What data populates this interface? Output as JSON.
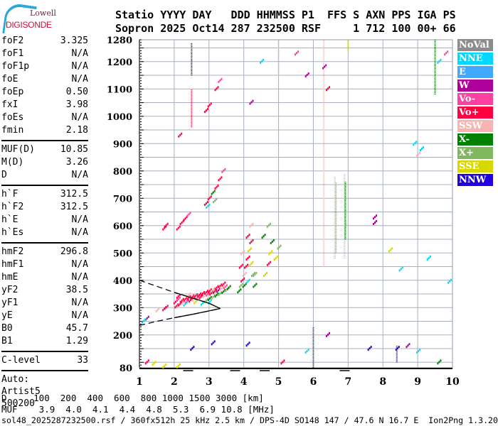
{
  "logo": {
    "line1": "Lowell",
    "line2": "DIGISONDE"
  },
  "header": {
    "line1": "Statio YYYY DAY   DDD HHMMSS P1  FFS S AXN PPS IGA PS",
    "line2": "Sopron 2025 Oct14 287 232500 RSF     1 712 100 00+ 66"
  },
  "params": {
    "group1": [
      [
        "foF2",
        "3.325"
      ],
      [
        "foF1",
        "N/A"
      ],
      [
        "foF1p",
        "N/A"
      ],
      [
        "foE",
        "N/A"
      ],
      [
        "foEp",
        "0.50"
      ],
      [
        "fxI",
        "3.98"
      ],
      [
        "foEs",
        "N/A"
      ],
      [
        "fmin",
        "2.18"
      ]
    ],
    "group2": [
      [
        "MUF(D)",
        "10.85"
      ],
      [
        "M(D)",
        "3.26"
      ],
      [
        "D",
        "N/A"
      ]
    ],
    "group3": [
      [
        "h`F",
        "312.5"
      ],
      [
        "h`F2",
        "312.5"
      ],
      [
        "h`E",
        "N/A"
      ],
      [
        "h`Es",
        "N/A"
      ]
    ],
    "group4": [
      [
        "hmF2",
        "296.8"
      ],
      [
        "hmF1",
        "N/A"
      ],
      [
        "hmE",
        "N/A"
      ],
      [
        "yF2",
        "38.5"
      ],
      [
        "yF1",
        "N/A"
      ],
      [
        "yE",
        "N/A"
      ],
      [
        "B0",
        "45.7"
      ],
      [
        "B1",
        "1.29"
      ]
    ],
    "group5": [
      [
        "C-level",
        "33"
      ]
    ],
    "auto": [
      "Auto:",
      "Artist5",
      "500200"
    ]
  },
  "legend": [
    {
      "label": "NoVal",
      "color": "#8c8c8c"
    },
    {
      "label": "NNE",
      "color": "#00d8ff"
    },
    {
      "label": "E",
      "color": "#40a8ff"
    },
    {
      "label": "W",
      "color": "#b0009c"
    },
    {
      "label": "Vo-",
      "color": "#ff40a0"
    },
    {
      "label": "Vo+",
      "color": "#ff0040"
    },
    {
      "label": "SSW",
      "color": "#f8b4b0"
    },
    {
      "label": "X-",
      "color": "#008000"
    },
    {
      "label": "X+",
      "color": "#80b860"
    },
    {
      "label": "SSE",
      "color": "#d8d800"
    },
    {
      "label": "NNW",
      "color": "#2000e0"
    }
  ],
  "footer": {
    "d_row": "D     100  200  400  600  800 1000 1500 3000 [km]",
    "muf_row": "MUF    3.9  4.0  4.1  4.4  4.8  5.3  6.9 10.8 [MHz]",
    "file_row": "sol48_2025287232500.rsf / 360fx512h 25 kHz 2.5 km / DPS-4D SO148 147 / 47.6 N 16.7 E  Ion2Png 1.3.20"
  },
  "chart_data": {
    "type": "scatter",
    "xlim": [
      1,
      10
    ],
    "ylim": [
      80,
      1280
    ],
    "x_ticks": [
      "1",
      "2",
      "3",
      "4",
      "5",
      "6",
      "7",
      "8",
      "9",
      "10"
    ],
    "y_ticks": [
      "80",
      "200",
      "300",
      "400",
      "500",
      "600",
      "700",
      "800",
      "900",
      "1000",
      "1100",
      "1200",
      "1280"
    ],
    "grid": true,
    "xlabel": "",
    "ylabel": "",
    "profile": {
      "upper": [
        [
          1.0,
          400
        ],
        [
          1.5,
          378
        ],
        [
          2.0,
          356
        ],
        [
          2.5,
          336
        ],
        [
          3.0,
          316
        ],
        [
          3.325,
          296.8
        ]
      ],
      "lower": [
        [
          1.0,
          235
        ],
        [
          1.5,
          250
        ],
        [
          2.0,
          263
        ],
        [
          2.5,
          275
        ],
        [
          3.0,
          288
        ],
        [
          3.325,
          296.8
        ]
      ]
    },
    "points": [
      [
        2.02,
        320,
        "Vo+"
      ],
      [
        2.05,
        305,
        "Vo+"
      ],
      [
        2.1,
        330,
        "Vo-"
      ],
      [
        2.15,
        312,
        "Vo+"
      ],
      [
        2.2,
        325,
        "Vo+"
      ],
      [
        2.25,
        318,
        "SSW"
      ],
      [
        2.3,
        330,
        "Vo+"
      ],
      [
        2.35,
        322,
        "Vo-"
      ],
      [
        2.4,
        335,
        "Vo+"
      ],
      [
        2.45,
        326,
        "Vo+"
      ],
      [
        2.5,
        338,
        "Vo+"
      ],
      [
        2.55,
        330,
        "SSW"
      ],
      [
        2.6,
        342,
        "Vo+"
      ],
      [
        2.65,
        335,
        "Vo-"
      ],
      [
        2.7,
        345,
        "Vo+"
      ],
      [
        2.75,
        338,
        "Vo+"
      ],
      [
        2.8,
        350,
        "Vo+"
      ],
      [
        2.85,
        342,
        "SSW"
      ],
      [
        2.9,
        355,
        "Vo+"
      ],
      [
        2.95,
        348,
        "Vo-"
      ],
      [
        3.0,
        360,
        "Vo+"
      ],
      [
        3.05,
        352,
        "Vo+"
      ],
      [
        3.1,
        365,
        "SSW"
      ],
      [
        3.15,
        358,
        "Vo+"
      ],
      [
        3.2,
        372,
        "Vo+"
      ],
      [
        3.25,
        362,
        "W"
      ],
      [
        3.3,
        378,
        "Vo+"
      ],
      [
        3.35,
        370,
        "SSW"
      ],
      [
        3.4,
        385,
        "Vo+"
      ],
      [
        3.45,
        375,
        "Vo-"
      ],
      [
        2.3,
        312,
        "NNE"
      ],
      [
        2.6,
        320,
        "SSE"
      ],
      [
        2.1,
        340,
        "Vo+"
      ],
      [
        2.4,
        345,
        "SSW"
      ],
      [
        2.9,
        325,
        "X+"
      ],
      [
        3.0,
        332,
        "X-"
      ],
      [
        3.1,
        338,
        "X+"
      ],
      [
        3.2,
        345,
        "X-"
      ],
      [
        3.3,
        350,
        "X+"
      ],
      [
        3.4,
        358,
        "X-"
      ],
      [
        3.5,
        365,
        "X+"
      ],
      [
        3.0,
        320,
        "NNE"
      ],
      [
        2.8,
        315,
        "NNE"
      ],
      [
        3.55,
        372,
        "X-"
      ],
      [
        3.85,
        360,
        "X-"
      ],
      [
        3.9,
        380,
        "X+"
      ],
      [
        3.95,
        400,
        "Vo+"
      ],
      [
        4.0,
        420,
        "SSW"
      ],
      [
        4.05,
        450,
        "Vo+"
      ],
      [
        4.1,
        480,
        "Vo+"
      ],
      [
        4.15,
        510,
        "SSE"
      ],
      [
        4.2,
        540,
        "Vo+"
      ],
      [
        4.25,
        420,
        "X+"
      ],
      [
        4.3,
        380,
        "X-"
      ],
      [
        3.9,
        450,
        "Vo+"
      ],
      [
        3.95,
        500,
        "SSW"
      ],
      [
        4.1,
        560,
        "Vo+"
      ],
      [
        4.2,
        600,
        "SSW"
      ],
      [
        4.0,
        380,
        "X-"
      ],
      [
        4.1,
        395,
        "NNE"
      ],
      [
        4.2,
        460,
        "SSE"
      ],
      [
        4.3,
        420,
        "X+"
      ],
      [
        4.6,
        420,
        "SSE"
      ],
      [
        4.7,
        460,
        "Vo+"
      ],
      [
        4.75,
        500,
        "SSE"
      ],
      [
        4.8,
        540,
        "X-"
      ],
      [
        4.9,
        480,
        "SSE"
      ],
      [
        5.0,
        520,
        "X+"
      ],
      [
        4.55,
        560,
        "X-"
      ],
      [
        4.7,
        600,
        "X+"
      ],
      [
        2.1,
        590,
        "Vo+"
      ],
      [
        2.2,
        610,
        "Vo+"
      ],
      [
        2.3,
        625,
        "Vo+"
      ],
      [
        2.4,
        640,
        "Vo-"
      ],
      [
        1.7,
        590,
        "Vo+"
      ],
      [
        1.75,
        600,
        "Vo+"
      ],
      [
        2.9,
        680,
        "Vo+"
      ],
      [
        3.0,
        700,
        "Vo+"
      ],
      [
        3.1,
        720,
        "X-"
      ],
      [
        3.2,
        740,
        "Vo+"
      ],
      [
        3.3,
        770,
        "Vo+"
      ],
      [
        3.4,
        800,
        "Vo-"
      ],
      [
        2.95,
        670,
        "NNE"
      ],
      [
        3.15,
        690,
        "X+"
      ],
      [
        2.15,
        930,
        "Vo+"
      ],
      [
        2.9,
        1020,
        "Vo+"
      ],
      [
        3.0,
        1040,
        "Vo+"
      ],
      [
        3.2,
        1100,
        "Vo+"
      ],
      [
        3.3,
        1130,
        "Vo-"
      ],
      [
        4.5,
        1200,
        "NNE"
      ],
      [
        4.2,
        1050,
        "W"
      ],
      [
        7.75,
        610,
        "W"
      ],
      [
        7.75,
        630,
        "W"
      ],
      [
        5.5,
        1230,
        "Vo-"
      ],
      [
        5.8,
        1150,
        "W"
      ],
      [
        6.3,
        1180,
        "W"
      ],
      [
        6.4,
        1100,
        "Vo+"
      ],
      [
        8.9,
        900,
        "NNE"
      ],
      [
        9.0,
        860,
        "SSW"
      ],
      [
        9.1,
        880,
        "NNE"
      ],
      [
        9.6,
        1200,
        "NNE"
      ],
      [
        9.8,
        1230,
        "Vo-"
      ],
      [
        1.5,
        290,
        "SSW"
      ],
      [
        1.7,
        295,
        "Vo+"
      ],
      [
        1.75,
        300,
        "Vo+"
      ],
      [
        1.2,
        260,
        "W"
      ],
      [
        1.1,
        250,
        "NNE"
      ],
      [
        8.5,
        440,
        "NNE"
      ],
      [
        8.2,
        510,
        "SSE"
      ],
      [
        9.3,
        480,
        "NNE"
      ],
      [
        9.9,
        395,
        "NNE"
      ],
      [
        1.2,
        100,
        "Vo+"
      ],
      [
        1.4,
        95,
        "SSE"
      ],
      [
        1.7,
        85,
        "SSE"
      ],
      [
        2.1,
        86,
        "SSE"
      ],
      [
        2.5,
        150,
        "NNW"
      ],
      [
        3.1,
        170,
        "NNW"
      ],
      [
        4.1,
        165,
        "NNW"
      ],
      [
        5.1,
        100,
        "Vo+"
      ],
      [
        5.8,
        140,
        "NNE"
      ],
      [
        6.4,
        200,
        "W"
      ],
      [
        7.6,
        150,
        "NNW"
      ],
      [
        8.4,
        150,
        "NNW"
      ],
      [
        8.7,
        160,
        "W"
      ],
      [
        9.0,
        140,
        "NNE"
      ],
      [
        9.6,
        100,
        "X-"
      ]
    ],
    "segments": [
      [
        2.5,
        1150,
        1270,
        "NNW"
      ],
      [
        2.5,
        960,
        1100,
        "Vo+"
      ],
      [
        5.0,
        1150,
        1280,
        "SSW"
      ],
      [
        6.3,
        450,
        1280,
        "SSW"
      ],
      [
        6.62,
        480,
        780,
        "SSW"
      ],
      [
        6.65,
        500,
        760,
        "X+"
      ],
      [
        6.9,
        480,
        790,
        "SSW"
      ],
      [
        6.92,
        550,
        760,
        "X-"
      ],
      [
        7.0,
        1240,
        1280,
        "SSE"
      ],
      [
        9.5,
        1080,
        1280,
        "X-"
      ],
      [
        8.4,
        100,
        160,
        "NNW"
      ],
      [
        6.0,
        80,
        230,
        "X-"
      ],
      [
        1.0,
        80,
        1280,
        "NNE"
      ]
    ]
  }
}
